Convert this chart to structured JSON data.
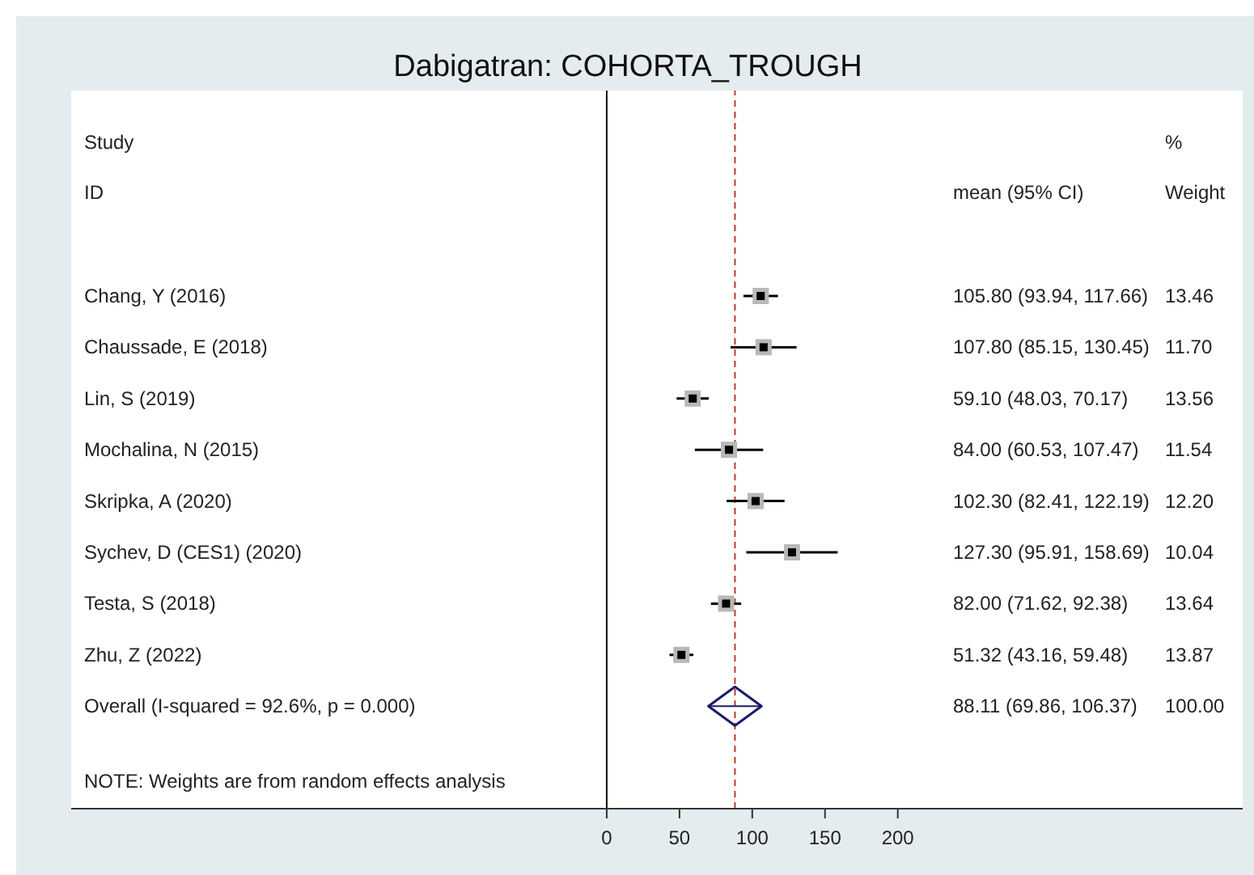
{
  "chart_data": {
    "type": "scatter",
    "title": "Dabigatran: COHORTA_TROUGH",
    "orientation": "horizontal",
    "categories": [
      "Chang, Y (2016)",
      "Chaussade, E (2018)",
      "Lin, S (2019)",
      "Mochalina, N (2015)",
      "Skripka, A (2020)",
      "Sychev, D (CES1) (2020)",
      "Testa, S (2018)",
      "Zhu, Z (2022)",
      "Overall  (I-squared = 92.6%, p = 0.000)"
    ],
    "series": [
      {
        "color": "#000000",
        "marker": "square",
        "values": [
          105.8,
          107.8,
          59.1,
          84.0,
          102.3,
          127.3,
          82.0,
          51.32,
          null
        ],
        "errors": [
          [
            93.94,
            117.66
          ],
          [
            85.15,
            130.45
          ],
          [
            48.03,
            70.17
          ],
          [
            60.53,
            107.47
          ],
          [
            82.41,
            122.19
          ],
          [
            95.91,
            158.69
          ],
          [
            71.62,
            92.38
          ],
          [
            43.16,
            59.48
          ],
          null
        ]
      },
      {
        "color": "#1a1a6e",
        "marker": "diamond",
        "values": [
          null,
          null,
          null,
          null,
          null,
          null,
          null,
          null,
          88.11
        ],
        "errors": [
          null,
          null,
          null,
          null,
          null,
          null,
          null,
          null,
          [
            69.86,
            106.37
          ]
        ]
      }
    ],
    "value_labels": [
      "105.80 (93.94, 117.66) 13.46",
      "107.80 (85.15, 130.45) 11.70",
      "59.10 (48.03, 70.17) 13.56",
      "84.00 (60.53, 107.47) 11.54",
      "102.30 (82.41, 122.19) 12.20",
      "127.30 (95.91, 158.69) 10.04",
      "82.00 (71.62, 92.38) 13.64",
      "51.32 (43.16, 59.48) 13.87",
      "88.11 (69.86, 106.37) 100.00"
    ],
    "xlim": [
      -368,
      437
    ],
    "xticks": [
      0,
      50,
      100,
      150,
      200
    ],
    "ref_lines": [
      {
        "axis": "x",
        "value": 0,
        "color": "#111111",
        "line_style": "solid"
      },
      {
        "axis": "x",
        "value": 88.11,
        "color": "#c0392b",
        "line_style": "dashed"
      }
    ],
    "annotations": [
      "Study",
      "ID",
      "%",
      "mean (95% CI)",
      "Weight",
      "NOTE: Weights are from random effects analysis"
    ],
    "legend": false
  }
}
